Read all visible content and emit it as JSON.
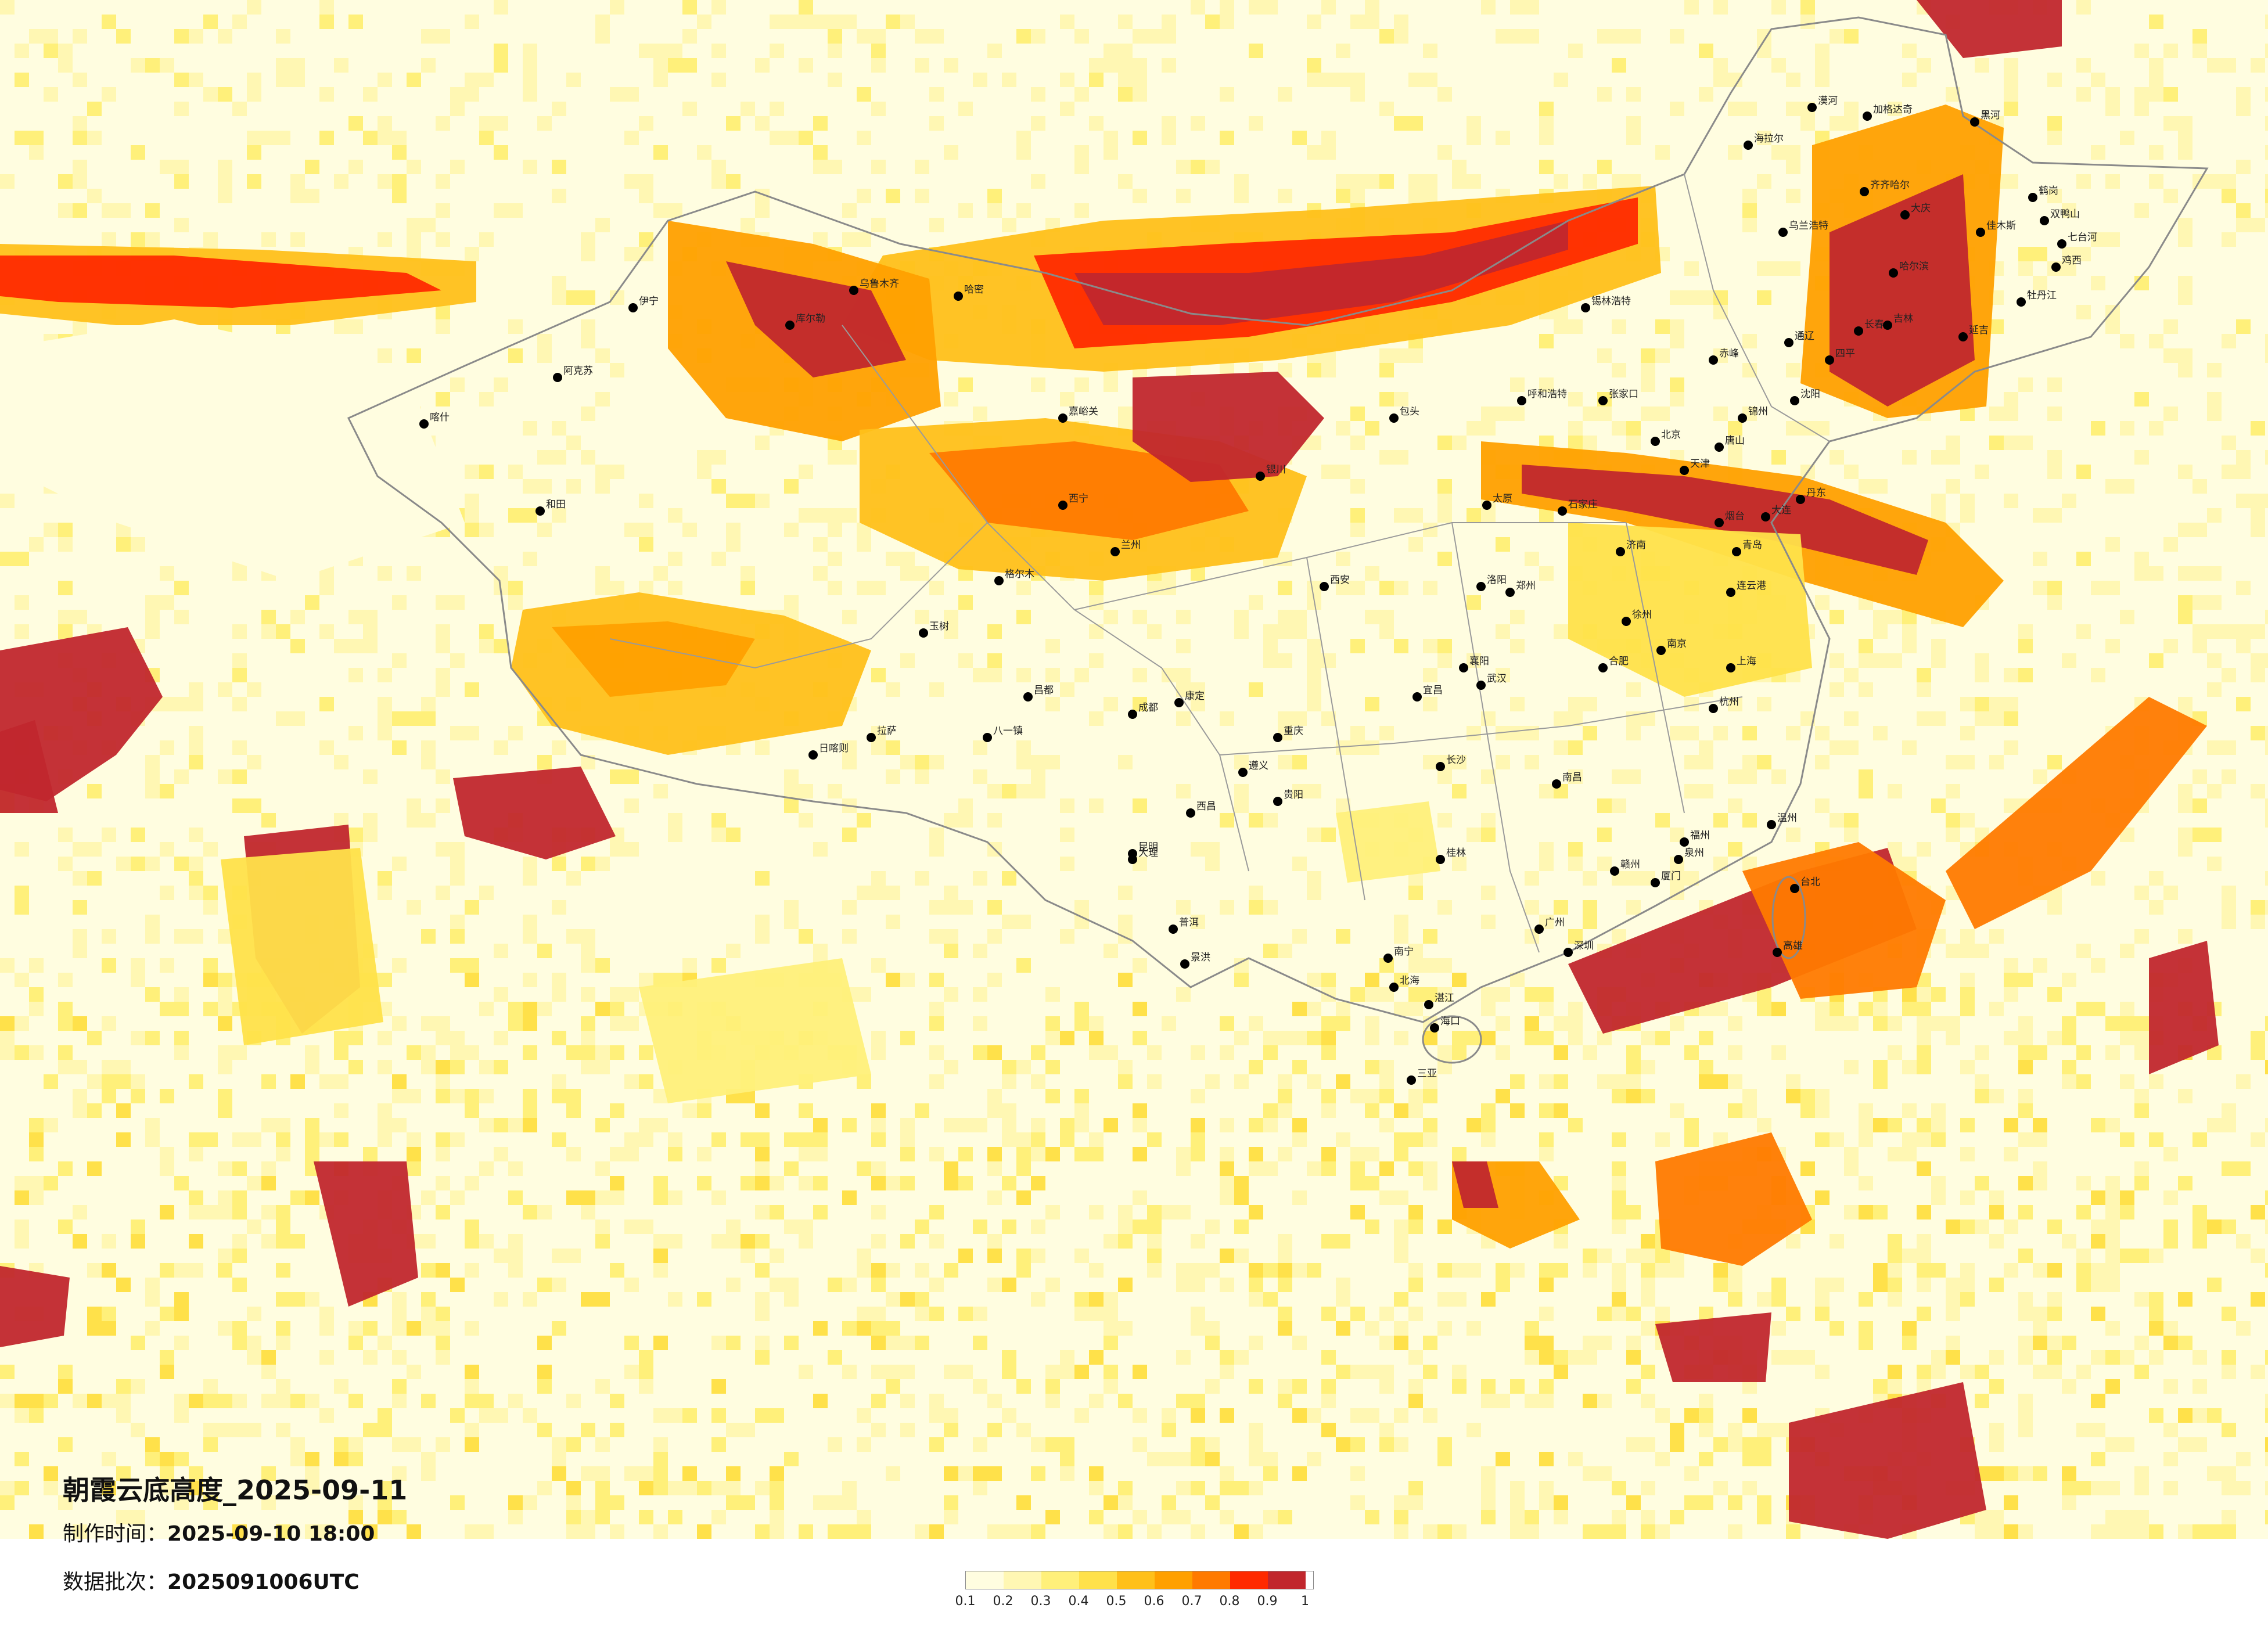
{
  "title": "朝霞云底高度_2025-09-11",
  "production_time": {
    "label": "制作时间：",
    "value": "2025-09-10 18:00"
  },
  "data_batch": {
    "label": "数据批次：",
    "value": "2025091006UTC"
  },
  "legend": {
    "colors": [
      "#fffde0",
      "#fff7b3",
      "#fff07a",
      "#ffe14a",
      "#ffc01a",
      "#ffa000",
      "#ff7a00",
      "#ff2a00",
      "#c1272d"
    ],
    "ticks": [
      "0.1",
      "0.2",
      "0.3",
      "0.4",
      "0.5",
      "0.6",
      "0.7",
      "0.8",
      "0.9",
      "1"
    ]
  },
  "cities": [
    {
      "name": "漠河"
    },
    {
      "name": "加格达奇"
    },
    {
      "name": "海拉尔"
    },
    {
      "name": "黑河"
    },
    {
      "name": "齐齐哈尔"
    },
    {
      "name": "大庆"
    },
    {
      "name": "哈尔滨"
    },
    {
      "name": "佳木斯"
    },
    {
      "name": "鹤岗"
    },
    {
      "name": "双鸭山"
    },
    {
      "name": "七台河"
    },
    {
      "name": "鸡西"
    },
    {
      "name": "牡丹江"
    },
    {
      "name": "乌兰浩特"
    },
    {
      "name": "长春"
    },
    {
      "name": "吉林"
    },
    {
      "name": "四平"
    },
    {
      "name": "延吉"
    },
    {
      "name": "锡林浩特"
    },
    {
      "name": "呼和浩特"
    },
    {
      "name": "张家口"
    },
    {
      "name": "北京"
    },
    {
      "name": "天津"
    },
    {
      "name": "唐山"
    },
    {
      "name": "沈阳"
    },
    {
      "name": "大连"
    },
    {
      "name": "锦州"
    },
    {
      "name": "石家庄"
    },
    {
      "name": "太原"
    },
    {
      "name": "济南"
    },
    {
      "name": "青岛"
    },
    {
      "name": "连云港"
    },
    {
      "name": "郑州"
    },
    {
      "name": "徐州"
    },
    {
      "name": "南京"
    },
    {
      "name": "上海"
    },
    {
      "name": "杭州"
    },
    {
      "name": "合肥"
    },
    {
      "name": "武汉"
    },
    {
      "name": "南昌"
    },
    {
      "name": "长沙"
    },
    {
      "name": "福州"
    },
    {
      "name": "厦门"
    },
    {
      "name": "广州"
    },
    {
      "name": "深圳"
    },
    {
      "name": "南宁"
    },
    {
      "name": "海口"
    },
    {
      "name": "三亚"
    },
    {
      "name": "贵阳"
    },
    {
      "name": "昆明"
    },
    {
      "name": "成都"
    },
    {
      "name": "重庆"
    },
    {
      "name": "西安"
    },
    {
      "name": "兰州"
    },
    {
      "name": "银川"
    },
    {
      "name": "西宁"
    },
    {
      "name": "乌鲁木齐"
    },
    {
      "name": "伊宁"
    },
    {
      "name": "阿克苏"
    },
    {
      "name": "喀什"
    },
    {
      "name": "和田"
    },
    {
      "name": "库尔勒"
    },
    {
      "name": "哈密"
    },
    {
      "name": "格尔木"
    },
    {
      "name": "拉萨"
    },
    {
      "name": "日喀则"
    },
    {
      "name": "八一镇"
    },
    {
      "name": "玉树"
    },
    {
      "name": "昌都"
    },
    {
      "name": "康定"
    },
    {
      "name": "西昌"
    },
    {
      "name": "大理"
    },
    {
      "name": "普洱"
    },
    {
      "name": "景洪"
    },
    {
      "name": "北海"
    },
    {
      "name": "湛江"
    },
    {
      "name": "桂林"
    },
    {
      "name": "赣州"
    },
    {
      "name": "温州"
    },
    {
      "name": "台北"
    },
    {
      "name": "高雄"
    },
    {
      "name": "嘉峪关"
    },
    {
      "name": "包头"
    },
    {
      "name": "赤峰"
    },
    {
      "name": "通辽"
    },
    {
      "name": "丹东"
    },
    {
      "name": "烟台"
    },
    {
      "name": "洛阳"
    },
    {
      "name": "襄阳"
    },
    {
      "name": "宜昌"
    },
    {
      "name": "遵义"
    },
    {
      "name": "泉州"
    }
  ]
}
